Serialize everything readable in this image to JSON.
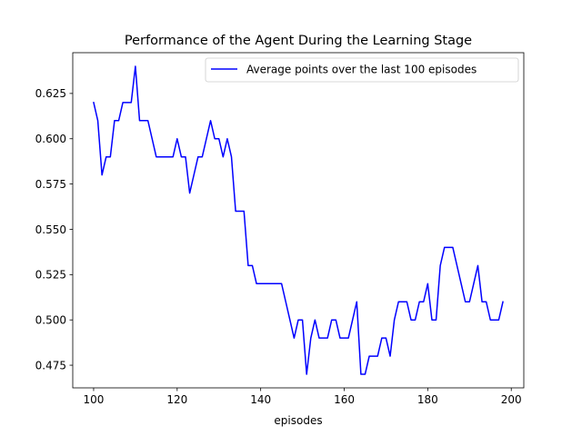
{
  "chart_data": {
    "type": "line",
    "title": "Performance of the Agent During the Learning Stage",
    "xlabel": "episodes",
    "ylabel": "",
    "xlim": [
      95,
      203
    ],
    "ylim": [
      0.4625,
      0.6475
    ],
    "xticks": [
      100,
      120,
      140,
      160,
      180,
      200
    ],
    "yticks": [
      0.475,
      0.5,
      0.525,
      0.55,
      0.575,
      0.6,
      0.625
    ],
    "ytick_labels": [
      "0.475",
      "0.500",
      "0.525",
      "0.550",
      "0.575",
      "0.600",
      "0.625"
    ],
    "grid": false,
    "legend": "top-right",
    "series": [
      {
        "name": "Average points over the last 100 episodes",
        "color": "#0000ff",
        "x": [
          100,
          101,
          102,
          103,
          104,
          105,
          106,
          107,
          108,
          109,
          110,
          111,
          112,
          113,
          114,
          115,
          116,
          117,
          118,
          119,
          120,
          121,
          122,
          123,
          124,
          125,
          126,
          127,
          128,
          129,
          130,
          131,
          132,
          133,
          134,
          135,
          136,
          137,
          138,
          139,
          140,
          141,
          142,
          143,
          144,
          145,
          146,
          147,
          148,
          149,
          150,
          151,
          152,
          153,
          154,
          155,
          156,
          157,
          158,
          159,
          160,
          161,
          162,
          163,
          164,
          165,
          166,
          167,
          168,
          169,
          170,
          171,
          172,
          173,
          174,
          175,
          176,
          177,
          178,
          179,
          180,
          181,
          182,
          183,
          184,
          185,
          186,
          187,
          188,
          189,
          190,
          191,
          192,
          193,
          194,
          195,
          196,
          197,
          198
        ],
        "y": [
          0.62,
          0.61,
          0.58,
          0.59,
          0.59,
          0.61,
          0.61,
          0.62,
          0.62,
          0.62,
          0.64,
          0.61,
          0.61,
          0.61,
          0.6,
          0.59,
          0.59,
          0.59,
          0.59,
          0.59,
          0.6,
          0.59,
          0.59,
          0.57,
          0.58,
          0.59,
          0.59,
          0.6,
          0.61,
          0.6,
          0.6,
          0.59,
          0.6,
          0.59,
          0.56,
          0.56,
          0.56,
          0.53,
          0.53,
          0.52,
          0.52,
          0.52,
          0.52,
          0.52,
          0.52,
          0.52,
          0.51,
          0.5,
          0.49,
          0.5,
          0.5,
          0.47,
          0.49,
          0.5,
          0.49,
          0.49,
          0.49,
          0.5,
          0.5,
          0.49,
          0.49,
          0.49,
          0.5,
          0.51,
          0.47,
          0.47,
          0.48,
          0.48,
          0.48,
          0.49,
          0.49,
          0.48,
          0.5,
          0.51,
          0.51,
          0.51,
          0.5,
          0.5,
          0.51,
          0.51,
          0.52,
          0.5,
          0.5,
          0.53,
          0.54,
          0.54,
          0.54,
          0.53,
          0.52,
          0.51,
          0.51,
          0.52,
          0.53,
          0.51,
          0.51,
          0.5,
          0.5,
          0.5,
          0.51
        ]
      }
    ]
  }
}
